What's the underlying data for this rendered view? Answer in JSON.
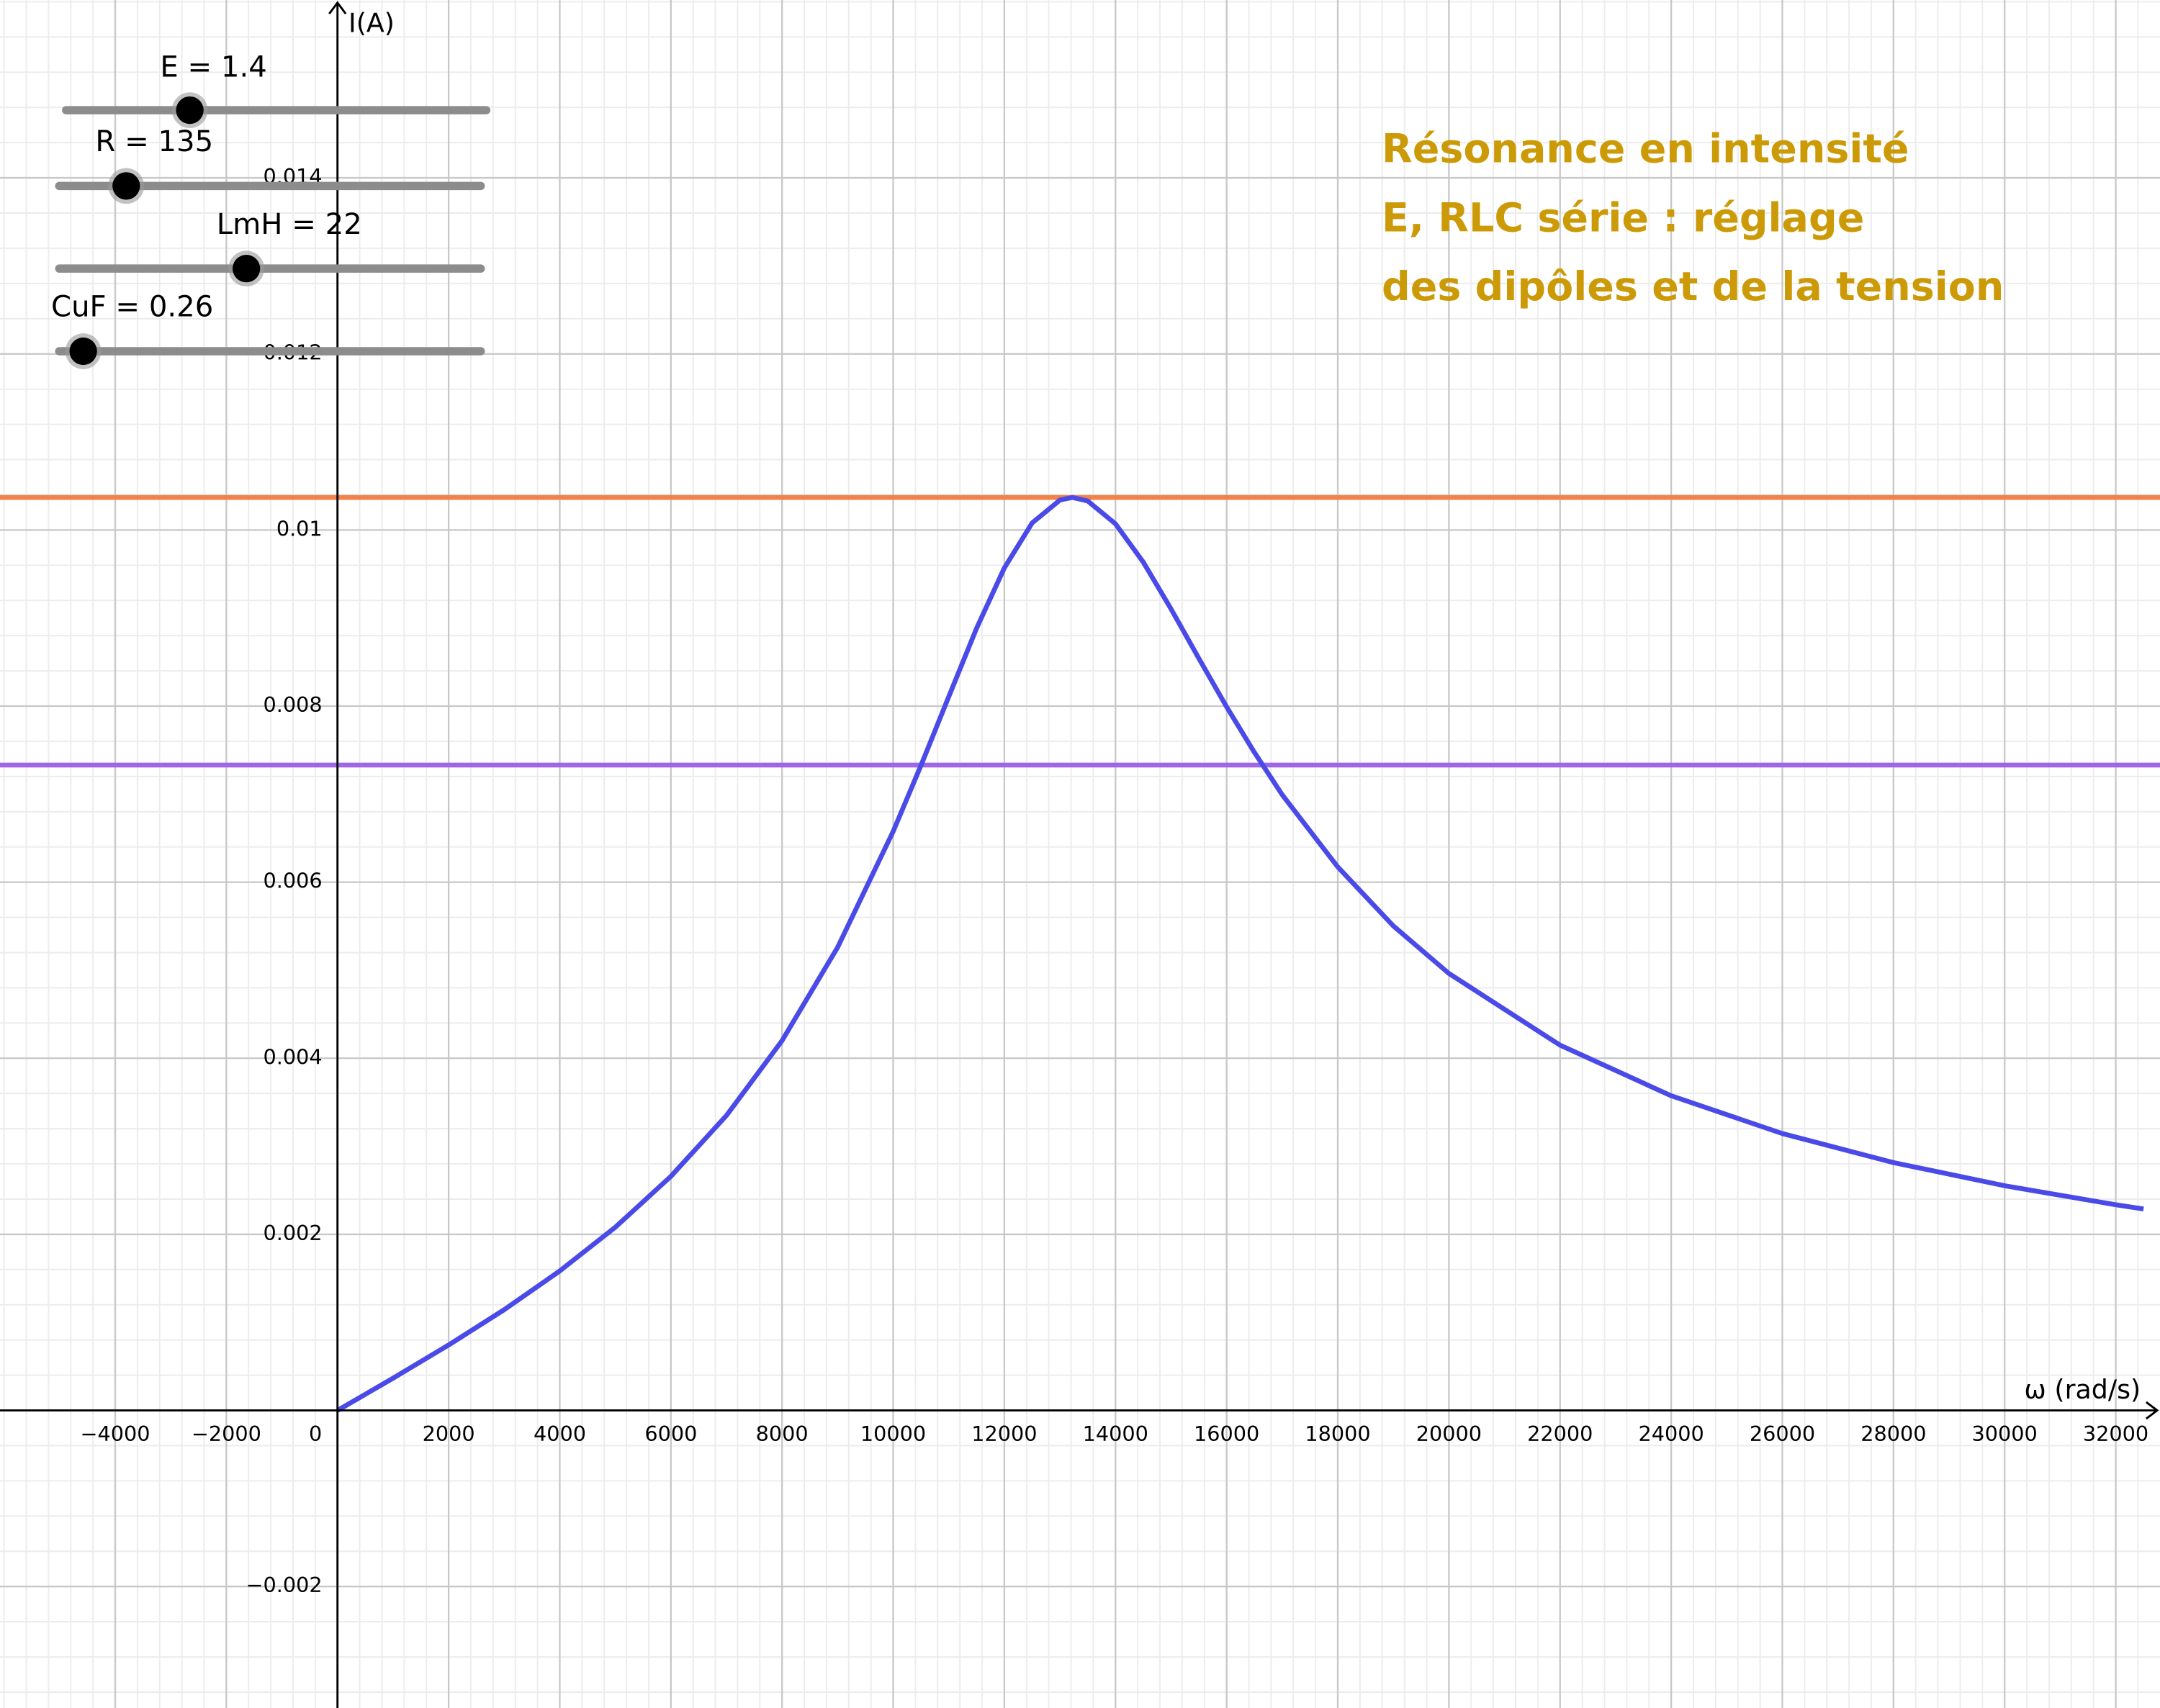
{
  "chart_data": {
    "type": "line",
    "x_label": "ω (rad/s)",
    "y_label": "I(A)",
    "annotation_lines": [
      "Résonance en intensité",
      "E, RLC série : réglage",
      "des dipôles et de la tension"
    ],
    "annotation_color": "#cc9a06",
    "x": [
      0,
      1000,
      2000,
      3000,
      4000,
      5000,
      6000,
      7000,
      8000,
      9000,
      10000,
      10500,
      11000,
      11500,
      12000,
      12500,
      13000,
      13222,
      13500,
      14000,
      14500,
      15000,
      15500,
      16000,
      16500,
      17000,
      18000,
      19000,
      20000,
      22000,
      24000,
      26000,
      28000,
      30000,
      32000,
      32500
    ],
    "series": [
      {
        "color": "#4a4ae8",
        "values": [
          0,
          0.000366,
          0.000743,
          0.001144,
          0.001584,
          0.002081,
          0.002659,
          0.00335,
          0.0042,
          0.00526,
          0.006577,
          0.007326,
          0.008107,
          0.008883,
          0.009569,
          0.01008,
          0.01034,
          0.01037,
          0.01033,
          0.01007,
          0.009635,
          0.009103,
          0.008542,
          0.007991,
          0.007474,
          0.006993,
          0.006173,
          0.005503,
          0.004963,
          0.004149,
          0.003574,
          0.003145,
          0.002815,
          0.002552,
          0.002336,
          0.002288
        ]
      }
    ],
    "hlines": [
      {
        "value": 0.01037,
        "color": "#f0824a"
      },
      {
        "value": 0.00733,
        "color": "#a066e8"
      }
    ],
    "xlim": [
      -6073,
      32796
    ],
    "ylim": [
      -0.00338,
      0.01602
    ],
    "xticks": [
      {
        "value": -4000,
        "label": "−4000"
      },
      {
        "value": -2000,
        "label": "−2000"
      },
      0,
      2000,
      4000,
      6000,
      8000,
      10000,
      12000,
      14000,
      16000,
      18000,
      20000,
      22000,
      24000,
      26000,
      28000,
      30000,
      32000
    ],
    "yticks": [
      {
        "value": -0.002,
        "label": "−0.002"
      },
      0.002,
      0.004,
      0.006,
      0.008,
      0.01,
      0.012,
      0.014
    ],
    "grid": true,
    "sliders": [
      {
        "label": "E = 1.4",
        "value": 1.4,
        "min": 0,
        "max": 5
      },
      {
        "label": "R = 135",
        "value": 135,
        "min": 0,
        "max": 1000
      },
      {
        "label": "LmH = 22",
        "value": 22,
        "min": 0,
        "max": 50
      },
      {
        "label": "CuF = 0.26",
        "value": 0.26,
        "min": 0,
        "max": 10
      }
    ]
  }
}
